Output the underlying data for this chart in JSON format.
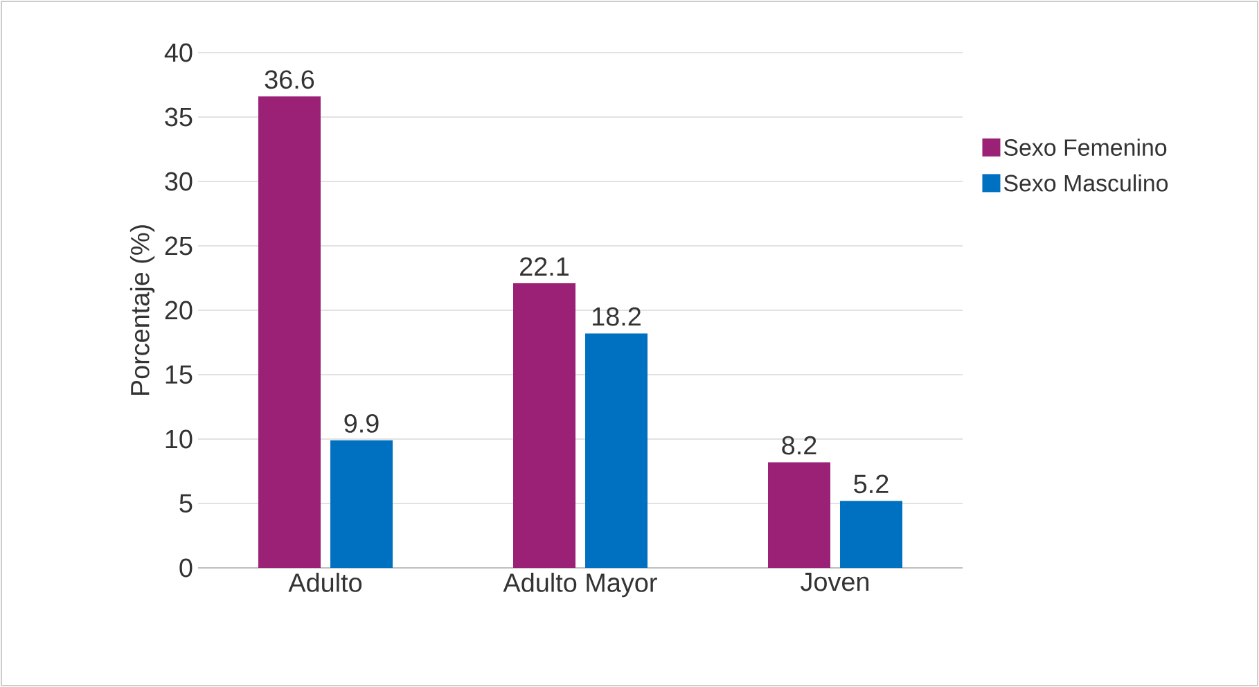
{
  "chart_data": {
    "type": "bar",
    "ylabel": "Porcentaje (%)",
    "categories": [
      "Adulto",
      "Adulto Mayor",
      "Joven"
    ],
    "series": [
      {
        "name": "Sexo Femenino",
        "color": "#9b2177",
        "values": [
          36.6,
          22.1,
          8.2
        ]
      },
      {
        "name": "Sexo Masculino",
        "color": "#0070c0",
        "values": [
          9.9,
          18.2,
          5.2
        ]
      }
    ],
    "ylim": [
      0,
      40
    ],
    "yticks": [
      0,
      5,
      10,
      15,
      20,
      25,
      30,
      35,
      40
    ],
    "grid": "y",
    "legend": "right",
    "data_labels": true
  }
}
